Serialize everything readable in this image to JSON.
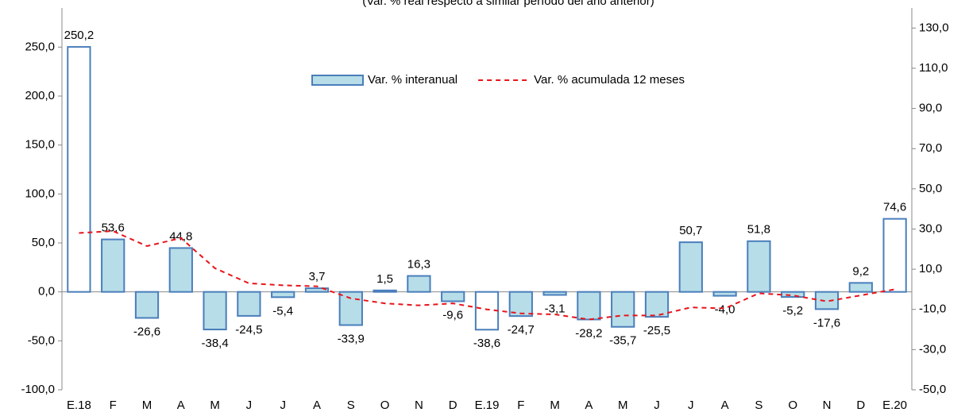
{
  "chart_data": {
    "type": "bar_line",
    "subtitle": "(Var. % real respecto a similar período del año anterior)",
    "categories": [
      "E.18",
      "F",
      "M",
      "A",
      "M",
      "J",
      "J",
      "A",
      "S",
      "O",
      "N",
      "D",
      "E.19",
      "F",
      "M",
      "A",
      "M",
      "J",
      "J",
      "A",
      "S",
      "O",
      "N",
      "D",
      "E.20"
    ],
    "series": [
      {
        "name": "Var. % interanual",
        "type": "bar",
        "color": "#4a7ebb",
        "fills": [
          "#ffffff",
          "#b7dde8",
          "#b7dde8",
          "#b7dde8",
          "#b7dde8",
          "#b7dde8",
          "#b7dde8",
          "#b7dde8",
          "#b7dde8",
          "#b7dde8",
          "#b7dde8",
          "#b7dde8",
          "#ffffff",
          "#b7dde8",
          "#b7dde8",
          "#b7dde8",
          "#b7dde8",
          "#b7dde8",
          "#b7dde8",
          "#b7dde8",
          "#b7dde8",
          "#b7dde8",
          "#b7dde8",
          "#b7dde8",
          "#ffffff"
        ],
        "values": [
          250.2,
          53.6,
          -26.6,
          44.8,
          -38.4,
          -24.5,
          -5.4,
          3.7,
          -33.9,
          1.5,
          16.3,
          -9.6,
          -38.6,
          -24.7,
          -3.1,
          -28.2,
          -35.7,
          -25.5,
          50.7,
          -4.0,
          51.8,
          -5.2,
          -17.6,
          9.2,
          74.6
        ],
        "value_labels": [
          "250,2",
          "53,6",
          "-26,6",
          "44,8",
          "-38,4",
          "-24,5",
          "-5,4",
          "3,7",
          "-33,9",
          "1,5",
          "16,3",
          "-9,6",
          "-38,6",
          "-24,7",
          "-3,1",
          "-28,2",
          "-35,7",
          "-25,5",
          "50,7",
          "-4,0",
          "51,8",
          "-5,2",
          "-17,6",
          "9,2",
          "74,6"
        ]
      },
      {
        "name": "Var. % acumulada 12 meses",
        "type": "line",
        "axis": "y2",
        "color": "#e8141b",
        "dashed": true,
        "values": [
          28,
          29,
          21.5,
          25.5,
          10.5,
          3,
          2,
          1.5,
          -4.5,
          -7,
          -8,
          -7,
          -10,
          -12,
          -12.5,
          -15,
          -13,
          -13,
          -9,
          -9.5,
          -2,
          -3,
          -6,
          -3,
          0
        ]
      }
    ],
    "ylim": [
      -100,
      290
    ],
    "yticks": [
      {
        "value": -100,
        "label": "-100,0"
      },
      {
        "value": -50,
        "label": "-50,0"
      },
      {
        "value": 0,
        "label": "0,0"
      },
      {
        "value": 50,
        "label": "50,0"
      },
      {
        "value": 100,
        "label": "100,0"
      },
      {
        "value": 150,
        "label": "150,0"
      },
      {
        "value": 200,
        "label": "200,0"
      },
      {
        "value": 250,
        "label": "250,0"
      }
    ],
    "y2lim": [
      -50,
      140
    ],
    "y2ticks": [
      {
        "value": -50,
        "label": "-50,0"
      },
      {
        "value": -30,
        "label": "-30,0"
      },
      {
        "value": -10,
        "label": "-10,0"
      },
      {
        "value": 10,
        "label": "10,0"
      },
      {
        "value": 30,
        "label": "30,0"
      },
      {
        "value": 50,
        "label": "50,0"
      },
      {
        "value": 70,
        "label": "70,0"
      },
      {
        "value": 90,
        "label": "90,0"
      },
      {
        "value": 110,
        "label": "110,0"
      },
      {
        "value": 130,
        "label": "130,0"
      }
    ]
  }
}
